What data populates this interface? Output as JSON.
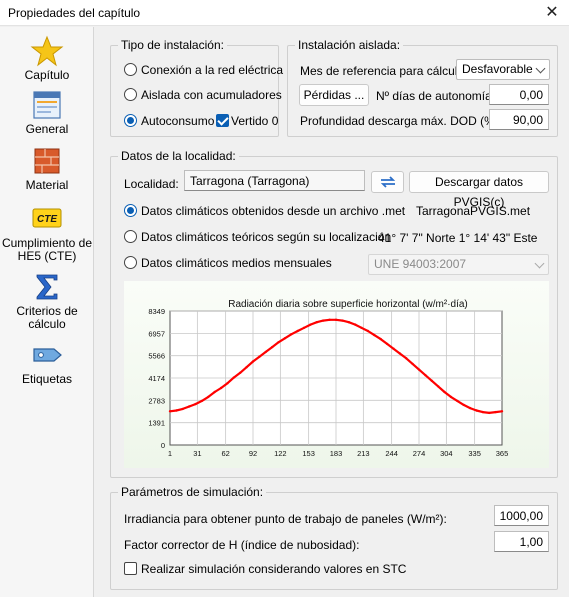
{
  "window": {
    "title": "Propiedades del capítulo",
    "close_glyph": "✕"
  },
  "sidebar": {
    "items": [
      {
        "label": "Capítulo",
        "icon": "star-icon"
      },
      {
        "label": "General",
        "icon": "window-icon",
        "selected": true
      },
      {
        "label": "Material",
        "icon": "brick-icon"
      },
      {
        "label": "Cumplimiento de HE5 (CTE)",
        "icon": "cte-icon",
        "icon_text": "CTE"
      },
      {
        "label": "Criterios de cálculo",
        "icon": "sigma-icon"
      },
      {
        "label": "Etiquetas",
        "icon": "tag-icon"
      }
    ]
  },
  "tipo_instalacion": {
    "legend": "Tipo de instalación:",
    "options": [
      "Conexión a la red eléctrica",
      "Aislada con acumuladores",
      "Autoconsumo"
    ],
    "selected_index": 2,
    "vertido_label": "Vertido 0",
    "vertido_checked": true
  },
  "instalacion_aislada": {
    "legend": "Instalación aislada:",
    "mes_label": "Mes de referencia para cálculo:",
    "mes_value": "Desfavorable",
    "perdidas_button": "Pérdidas ...",
    "dias_label": "Nº días de autonomía:",
    "dias_value": "0,00",
    "dod_label": "Profundidad descarga máx. DOD (%):",
    "dod_value": "90,00"
  },
  "localidad": {
    "legend": "Datos de la localidad:",
    "label": "Localidad:",
    "value": "Tarragona (Tarragona)",
    "download_button": "Descargar datos PVGIS(c)",
    "options": [
      "Datos climáticos obtenidos desde un archivo .met",
      "Datos climáticos teóricos según su localización",
      "Datos climáticos medios mensuales"
    ],
    "selected_index": 0,
    "met_file": "TarragonaPVGIS.met",
    "coords": "41° 7' 7\" Norte 1° 14' 43\" Este",
    "norma_value": "UNE 94003:2007"
  },
  "chart_data": {
    "type": "line",
    "title": "Radiación diaria sobre superficie horizontal (w/m²·día)",
    "xlabel": "",
    "ylabel": "",
    "x_ticks": [
      1,
      31,
      62,
      92,
      122,
      153,
      183,
      213,
      244,
      274,
      304,
      335,
      365
    ],
    "y_ticks": [
      0,
      1391,
      2783,
      4174,
      5566,
      6957,
      8349
    ],
    "xlim": [
      1,
      365
    ],
    "ylim": [
      0,
      8349
    ],
    "grid": true,
    "series_color": "#ff0000",
    "series": [
      {
        "x": [
          1,
          8,
          15,
          22,
          29,
          36,
          43,
          50,
          57,
          64,
          71,
          78,
          85,
          92,
          99,
          106,
          113,
          120,
          127,
          134,
          141,
          148,
          155,
          162,
          169,
          176,
          183,
          190,
          197,
          204,
          211,
          218,
          225,
          232,
          239,
          246,
          253,
          260,
          267,
          274,
          281,
          288,
          295,
          302,
          309,
          316,
          323,
          330,
          337,
          344,
          351,
          358,
          365
        ],
        "y": [
          2100,
          2150,
          2250,
          2400,
          2550,
          2750,
          3000,
          3300,
          3550,
          3850,
          4200,
          4500,
          4850,
          5200,
          5500,
          5800,
          6100,
          6400,
          6650,
          6900,
          7100,
          7300,
          7500,
          7650,
          7750,
          7800,
          7800,
          7750,
          7650,
          7500,
          7300,
          7100,
          6850,
          6600,
          6300,
          6000,
          5700,
          5400,
          5050,
          4700,
          4350,
          4000,
          3650,
          3300,
          3000,
          2750,
          2500,
          2300,
          2150,
          2050,
          2000,
          2050,
          2100
        ]
      }
    ]
  },
  "simulacion": {
    "legend": "Parámetros de simulación:",
    "irr_label": "Irradiancia para obtener punto de trabajo de paneles (W/m²):",
    "irr_value": "1000,00",
    "h_label": "Factor corrector de H (índice de nubosidad):",
    "h_value": "1,00",
    "stc_label": "Realizar simulación considerando valores en STC",
    "stc_checked": false
  }
}
